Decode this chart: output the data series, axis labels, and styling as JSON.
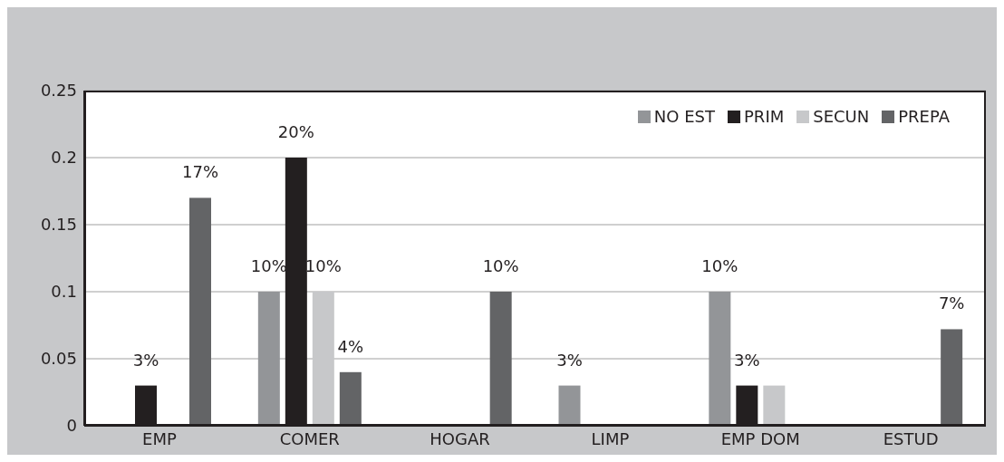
{
  "chart_data": {
    "type": "bar",
    "categories": [
      "EMP",
      "COMER",
      "HOGAR",
      "LIMP",
      "EMP DOM",
      "ESTUD"
    ],
    "series": [
      {
        "name": "NO EST",
        "color": "#939598",
        "values": [
          null,
          0.1,
          null,
          0.03,
          0.1,
          null
        ],
        "value_labels": [
          null,
          "10%",
          null,
          "3%",
          "10%",
          null
        ]
      },
      {
        "name": "PRIM",
        "color": "#231f20",
        "values": [
          0.03,
          0.2,
          null,
          null,
          0.03,
          null
        ],
        "value_labels": [
          "3%",
          "20%",
          null,
          null,
          "3%",
          null
        ]
      },
      {
        "name": "SECUN",
        "color": "#c7c8ca",
        "values": [
          null,
          0.1,
          null,
          null,
          0.03,
          null
        ],
        "value_labels": [
          null,
          "10%",
          null,
          null,
          null,
          null
        ]
      },
      {
        "name": "PREPA",
        "color": "#636466",
        "values": [
          0.17,
          0.04,
          0.1,
          null,
          null,
          0.072
        ],
        "value_labels": [
          "17%",
          "4%",
          "10%",
          null,
          null,
          "7%"
        ]
      }
    ],
    "ylim": [
      0,
      0.25
    ],
    "yticks": [
      0,
      0.05,
      0.1,
      0.15,
      0.2,
      0.25
    ],
    "grid": "y",
    "legend": "top right"
  }
}
